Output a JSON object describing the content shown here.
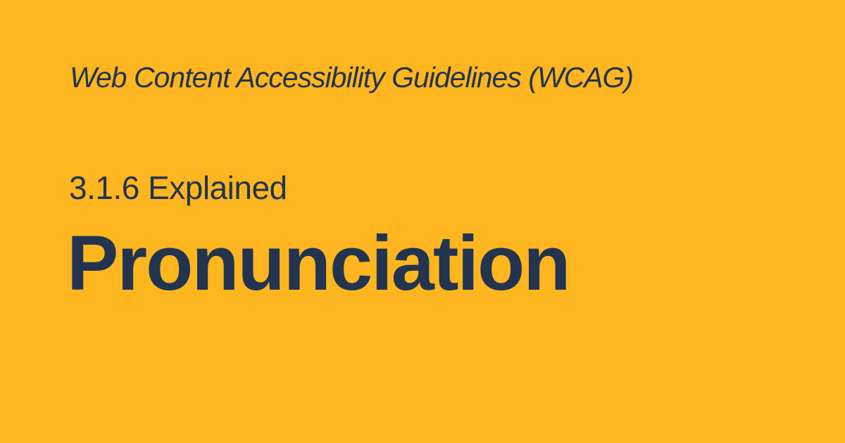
{
  "card": {
    "subtitle": "Web Content Accessibility Guidelines (WCAG)",
    "kicker": "3.1.6 Explained",
    "title": "Pronunciation"
  },
  "colors": {
    "background": "#FDB61F",
    "text": "#22344F"
  }
}
